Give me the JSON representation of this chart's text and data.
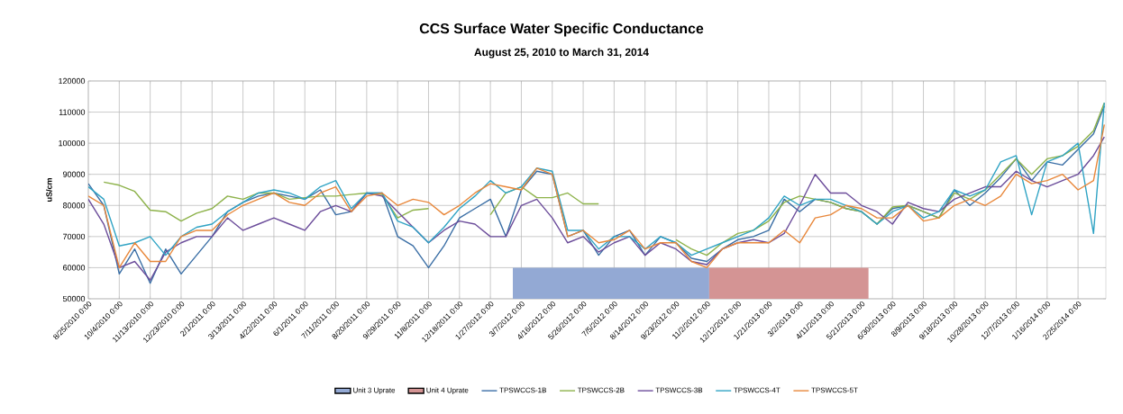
{
  "chart_data": {
    "type": "line",
    "title": "CCS Surface Water Specific Conductance",
    "subtitle": "August 25, 2010 to March 31, 2014",
    "ylabel": "uS/cm",
    "x": [
      "2010-08-25",
      "2010-09-14",
      "2010-10-04",
      "2010-10-24",
      "2010-11-13",
      "2010-12-03",
      "2010-12-23",
      "2011-01-12",
      "2011-02-01",
      "2011-02-21",
      "2011-03-13",
      "2011-04-02",
      "2011-04-22",
      "2011-05-12",
      "2011-06-01",
      "2011-06-21",
      "2011-07-11",
      "2011-07-31",
      "2011-08-20",
      "2011-09-09",
      "2011-09-29",
      "2011-10-19",
      "2011-11-08",
      "2011-11-28",
      "2011-12-18",
      "2012-01-07",
      "2012-01-27",
      "2012-02-16",
      "2012-03-07",
      "2012-03-27",
      "2012-04-16",
      "2012-05-06",
      "2012-05-26",
      "2012-06-15",
      "2012-07-05",
      "2012-07-25",
      "2012-08-14",
      "2012-09-03",
      "2012-09-23",
      "2012-10-13",
      "2012-11-02",
      "2012-11-22",
      "2012-12-12",
      "2013-01-01",
      "2013-01-21",
      "2013-02-10",
      "2013-03-02",
      "2013-03-22",
      "2013-04-11",
      "2013-05-01",
      "2013-05-21",
      "2013-06-10",
      "2013-06-30",
      "2013-07-20",
      "2013-08-09",
      "2013-08-29",
      "2013-09-18",
      "2013-10-08",
      "2013-10-28",
      "2013-11-17",
      "2013-12-07",
      "2013-12-27",
      "2014-01-16",
      "2014-02-05",
      "2014-02-25",
      "2014-03-17",
      "2014-03-31"
    ],
    "series": [
      {
        "name": "Unit 3 Uprate",
        "type": "area",
        "color": "#93a9d4",
        "x": [
          "2012-02-25",
          "2012-11-05"
        ],
        "values": [
          60000,
          60000
        ]
      },
      {
        "name": "Unit 4 Uprate",
        "type": "area",
        "color": "#d49494",
        "x": [
          "2012-11-05",
          "2013-05-30"
        ],
        "values": [
          60000,
          60000
        ]
      },
      {
        "name": "TPSWCCS-1B",
        "color": "#3a6ea5",
        "values": [
          87000,
          80000,
          58000,
          66000,
          55000,
          66000,
          58000,
          64000,
          70000,
          78000,
          81000,
          83000,
          84000,
          83000,
          82000,
          85000,
          77000,
          78000,
          84000,
          84000,
          70000,
          67000,
          60000,
          67000,
          76000,
          79000,
          82000,
          70000,
          85000,
          91000,
          90000,
          70000,
          72000,
          64000,
          70000,
          72000,
          64000,
          70000,
          68000,
          63000,
          62000,
          66000,
          69000,
          70000,
          72000,
          82000,
          78000,
          82000,
          81000,
          79000,
          78000,
          74000,
          79000,
          80000,
          78000,
          76000,
          85000,
          80000,
          84000,
          89000,
          95000,
          88000,
          94000,
          93000,
          98000,
          103000,
          112000
        ]
      },
      {
        "name": "TPSWCCS-2B",
        "color": "#8db24a",
        "values": [
          null,
          87500,
          86500,
          84500,
          78500,
          78000,
          75000,
          77500,
          79000,
          83000,
          82000,
          84000,
          84000,
          82000,
          82500,
          83000,
          83000,
          83500,
          84000,
          83500,
          76000,
          78500,
          79000,
          null,
          null,
          null,
          77000,
          84000,
          86000,
          82500,
          82500,
          84000,
          80500,
          80500,
          null,
          null,
          null,
          null,
          69000,
          66000,
          64000,
          68000,
          71000,
          72000,
          75000,
          81000,
          83000,
          82000,
          81000,
          79000,
          78000,
          74000,
          79500,
          80000,
          78000,
          76000,
          84000,
          82000,
          85000,
          90000,
          95000,
          90000,
          95000,
          96000,
          99000,
          104000,
          113000
        ]
      },
      {
        "name": "TPSWCCS-3B",
        "color": "#6b4c9a",
        "values": [
          82000,
          74000,
          60000,
          62000,
          56000,
          65000,
          68000,
          70000,
          70000,
          76000,
          72000,
          74000,
          76000,
          74000,
          72000,
          78000,
          80000,
          78000,
          84000,
          83000,
          78000,
          73000,
          68000,
          72000,
          75000,
          74000,
          70000,
          70000,
          80000,
          82000,
          76000,
          68000,
          70000,
          65000,
          68000,
          70000,
          64000,
          68000,
          66000,
          62000,
          61000,
          66000,
          68000,
          69000,
          68000,
          71000,
          80000,
          90000,
          84000,
          84000,
          80000,
          78000,
          74000,
          81000,
          79000,
          78000,
          82000,
          84000,
          86000,
          86000,
          91000,
          88000,
          86000,
          88000,
          90000,
          96000,
          102000
        ]
      },
      {
        "name": "TPSWCCS-4T",
        "color": "#2fa3c4",
        "values": [
          86000,
          82000,
          67000,
          68000,
          70000,
          64000,
          70000,
          73000,
          74000,
          78000,
          81000,
          84000,
          85000,
          84000,
          82000,
          86000,
          88000,
          79000,
          84000,
          84000,
          75000,
          73000,
          68000,
          73000,
          79000,
          83000,
          88000,
          84000,
          86000,
          92000,
          91000,
          72000,
          72000,
          66000,
          70000,
          70000,
          66000,
          70000,
          68000,
          64000,
          66000,
          68000,
          70000,
          72000,
          76000,
          83000,
          80000,
          82000,
          82000,
          80000,
          78000,
          74000,
          78000,
          80000,
          76000,
          78000,
          85000,
          83000,
          85000,
          94000,
          96000,
          77000,
          94000,
          96000,
          100000,
          71000,
          113000
        ]
      },
      {
        "name": "TPSWCCS-5T",
        "color": "#e8873a",
        "values": [
          83000,
          80000,
          60000,
          68000,
          62000,
          62000,
          70000,
          72000,
          72000,
          77000,
          80000,
          82000,
          84000,
          81000,
          80000,
          84000,
          86000,
          78000,
          83000,
          84000,
          80000,
          82000,
          81000,
          77000,
          80000,
          84000,
          87000,
          86000,
          85000,
          92000,
          90000,
          70000,
          72000,
          68000,
          69000,
          72000,
          66000,
          68000,
          68000,
          62000,
          60000,
          66000,
          68000,
          68000,
          68000,
          72000,
          68000,
          76000,
          77000,
          80000,
          79000,
          76000,
          76000,
          80000,
          75000,
          76000,
          80000,
          82000,
          80000,
          83000,
          90000,
          87000,
          88000,
          90000,
          85000,
          88000,
          106000
        ]
      }
    ],
    "xlim": [
      "2010-08-25",
      "2014-04-02"
    ],
    "xticks": [
      {
        "value": "2010-08-25",
        "label": "8/25/2010 0:00"
      },
      {
        "value": "2010-10-04",
        "label": "10/4/2010 0:00"
      },
      {
        "value": "2010-11-13",
        "label": "11/13/2010 0:00"
      },
      {
        "value": "2010-12-23",
        "label": "12/23/2010 0:00"
      },
      {
        "value": "2011-02-01",
        "label": "2/1/2011 0:00"
      },
      {
        "value": "2011-03-13",
        "label": "3/13/2011 0:00"
      },
      {
        "value": "2011-04-22",
        "label": "4/22/2011 0:00"
      },
      {
        "value": "2011-06-01",
        "label": "6/1/2011 0:00"
      },
      {
        "value": "2011-07-11",
        "label": "7/11/2011 0:00"
      },
      {
        "value": "2011-08-20",
        "label": "8/20/2011 0:00"
      },
      {
        "value": "2011-09-29",
        "label": "9/29/2011 0:00"
      },
      {
        "value": "2011-11-08",
        "label": "11/8/2011 0:00"
      },
      {
        "value": "2011-12-18",
        "label": "12/18/2011 0:00"
      },
      {
        "value": "2012-01-27",
        "label": "1/27/2012 0:00"
      },
      {
        "value": "2012-03-07",
        "label": "3/7/2012 0:00"
      },
      {
        "value": "2012-04-16",
        "label": "4/16/2012 0:00"
      },
      {
        "value": "2012-05-26",
        "label": "5/26/2012 0:00"
      },
      {
        "value": "2012-07-05",
        "label": "7/5/2012 0:00"
      },
      {
        "value": "2012-08-14",
        "label": "8/14/2012 0:00"
      },
      {
        "value": "2012-09-23",
        "label": "9/23/2012 0:00"
      },
      {
        "value": "2012-11-02",
        "label": "11/2/2012 0:00"
      },
      {
        "value": "2012-12-12",
        "label": "12/12/2012 0:00"
      },
      {
        "value": "2013-01-21",
        "label": "1/21/2013 0:00"
      },
      {
        "value": "2013-03-02",
        "label": "3/2/2013 0:00"
      },
      {
        "value": "2013-04-11",
        "label": "4/11/2013 0:00"
      },
      {
        "value": "2013-05-21",
        "label": "5/21/2013 0:00"
      },
      {
        "value": "2013-06-30",
        "label": "6/30/2013 0:00"
      },
      {
        "value": "2013-08-09",
        "label": "8/9/2013 0:00"
      },
      {
        "value": "2013-09-18",
        "label": "9/18/2013 0:00"
      },
      {
        "value": "2013-10-28",
        "label": "10/28/2013 0:00"
      },
      {
        "value": "2013-12-07",
        "label": "12/7/2013 0:00"
      },
      {
        "value": "2014-01-16",
        "label": "1/16/2014 0:00"
      },
      {
        "value": "2014-02-25",
        "label": "2/25/2014 0:00"
      }
    ],
    "ylim": [
      50000,
      120000
    ],
    "yticks": [
      50000,
      60000,
      70000,
      80000,
      90000,
      100000,
      110000,
      120000
    ],
    "grid": true,
    "legend": "bottom"
  }
}
